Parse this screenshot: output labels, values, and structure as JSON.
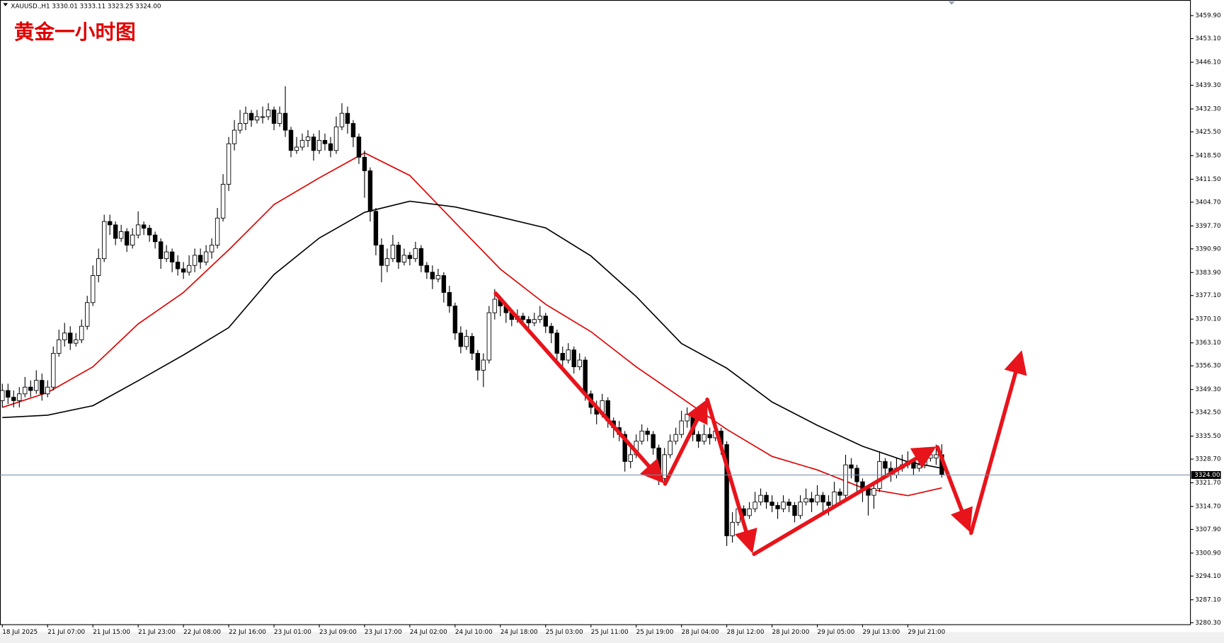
{
  "chart_data": {
    "type": "candlestick",
    "header": "XAUUSD.,H1 3330.01 3333.11 3323.25 3324.00",
    "title": "黄金一小时图",
    "up_color": "#ffffff",
    "down_color": "#000000",
    "categories": [
      "18 Jul 2025",
      null,
      null,
      null,
      null,
      null,
      null,
      null,
      "21 Jul 07:00",
      null,
      null,
      null,
      null,
      null,
      null,
      null,
      "21 Jul 15:00",
      null,
      null,
      null,
      null,
      null,
      null,
      null,
      "21 Jul 23:00",
      null,
      null,
      null,
      null,
      null,
      null,
      null,
      "22 Jul 08:00",
      null,
      null,
      null,
      null,
      null,
      null,
      null,
      "22 Jul 16:00",
      null,
      null,
      null,
      null,
      null,
      null,
      null,
      "23 Jul 01:00",
      null,
      null,
      null,
      null,
      null,
      null,
      null,
      "23 Jul 09:00",
      null,
      null,
      null,
      null,
      null,
      null,
      null,
      "23 Jul 17:00",
      null,
      null,
      null,
      null,
      null,
      null,
      null,
      "24 Jul 02:00",
      null,
      null,
      null,
      null,
      null,
      null,
      null,
      "24 Jul 10:00",
      null,
      null,
      null,
      null,
      null,
      null,
      null,
      "24 Jul 18:00",
      null,
      null,
      null,
      null,
      null,
      null,
      null,
      "25 Jul 03:00",
      null,
      null,
      null,
      null,
      null,
      null,
      null,
      "25 Jul 11:00",
      null,
      null,
      null,
      null,
      null,
      null,
      null,
      "25 Jul 19:00",
      null,
      null,
      null,
      null,
      null,
      null,
      null,
      "28 Jul 04:00",
      null,
      null,
      null,
      null,
      null,
      null,
      null,
      "28 Jul 12:00",
      null,
      null,
      null,
      null,
      null,
      null,
      null,
      "28 Jul 20:00",
      null,
      null,
      null,
      null,
      null,
      null,
      null,
      "29 Jul 05:00",
      null,
      null,
      null,
      null,
      null,
      null,
      null,
      "29 Jul 13:00",
      null,
      null,
      null,
      null,
      null,
      null,
      null,
      "29 Jul 21:00",
      null,
      null,
      null,
      null,
      null,
      null
    ],
    "ohlc": [
      [
        3346,
        3351,
        3344,
        3349
      ],
      [
        3349,
        3351,
        3345,
        3347
      ],
      [
        3347,
        3349,
        3344,
        3346
      ],
      [
        3346,
        3350,
        3344,
        3348
      ],
      [
        3348,
        3353,
        3347,
        3350
      ],
      [
        3350,
        3352,
        3347,
        3349
      ],
      [
        3349,
        3355,
        3348,
        3352
      ],
      [
        3352,
        3354,
        3346,
        3348
      ],
      [
        3348,
        3352,
        3347,
        3350
      ],
      [
        3350,
        3362,
        3349,
        3360
      ],
      [
        3360,
        3367,
        3359,
        3364
      ],
      [
        3364,
        3369,
        3362,
        3366
      ],
      [
        3366,
        3368,
        3361,
        3363
      ],
      [
        3363,
        3366,
        3362,
        3364
      ],
      [
        3364,
        3370,
        3363,
        3368
      ],
      [
        3368,
        3377,
        3367,
        3375
      ],
      [
        3375,
        3386,
        3374,
        3383
      ],
      [
        3383,
        3391,
        3381,
        3388
      ],
      [
        3388,
        3401,
        3387,
        3399
      ],
      [
        3399,
        3401,
        3395,
        3398
      ],
      [
        3398,
        3399,
        3392,
        3394
      ],
      [
        3394,
        3398,
        3393,
        3396
      ],
      [
        3396,
        3397,
        3390,
        3392
      ],
      [
        3392,
        3397,
        3391,
        3395
      ],
      [
        3395,
        3402,
        3394,
        3398
      ],
      [
        3398,
        3399,
        3395,
        3397
      ],
      [
        3397,
        3398,
        3393,
        3395
      ],
      [
        3395,
        3396,
        3391,
        3393
      ],
      [
        3393,
        3394,
        3385,
        3388
      ],
      [
        3388,
        3392,
        3387,
        3390
      ],
      [
        3390,
        3391,
        3384,
        3387
      ],
      [
        3387,
        3389,
        3383,
        3385
      ],
      [
        3385,
        3387,
        3382,
        3384
      ],
      [
        3384,
        3389,
        3383,
        3386
      ],
      [
        3386,
        3391,
        3384,
        3389
      ],
      [
        3389,
        3391,
        3385,
        3387
      ],
      [
        3387,
        3392,
        3386,
        3390
      ],
      [
        3390,
        3394,
        3388,
        3392
      ],
      [
        3392,
        3403,
        3391,
        3400
      ],
      [
        3400,
        3413,
        3399,
        3410
      ],
      [
        3410,
        3424,
        3408,
        3422
      ],
      [
        3422,
        3429,
        3420,
        3426
      ],
      [
        3426,
        3432,
        3425,
        3428
      ],
      [
        3428,
        3433,
        3426,
        3431
      ],
      [
        3431,
        3432,
        3427,
        3429
      ],
      [
        3429,
        3432,
        3428,
        3430
      ],
      [
        3430,
        3433,
        3428,
        3430
      ],
      [
        3430,
        3434,
        3429,
        3432
      ],
      [
        3432,
        3433,
        3426,
        3428
      ],
      [
        3428,
        3433,
        3427,
        3431
      ],
      [
        3431,
        3439,
        3424,
        3426
      ],
      [
        3426,
        3427,
        3418,
        3420
      ],
      [
        3420,
        3424,
        3419,
        3421
      ],
      [
        3421,
        3425,
        3420,
        3423
      ],
      [
        3423,
        3426,
        3421,
        3424
      ],
      [
        3424,
        3425,
        3417,
        3420
      ],
      [
        3420,
        3426,
        3419,
        3423
      ],
      [
        3423,
        3425,
        3420,
        3422
      ],
      [
        3422,
        3424,
        3418,
        3420
      ],
      [
        3420,
        3430,
        3419,
        3427
      ],
      [
        3427,
        3434,
        3426,
        3431
      ],
      [
        3431,
        3433,
        3425,
        3428
      ],
      [
        3428,
        3429,
        3421,
        3424
      ],
      [
        3424,
        3425,
        3416,
        3418
      ],
      [
        3418,
        3420,
        3406,
        3414
      ],
      [
        3414,
        3415,
        3399,
        3402
      ],
      [
        3402,
        3403,
        3389,
        3392
      ],
      [
        3392,
        3394,
        3381,
        3386
      ],
      [
        3386,
        3391,
        3384,
        3388
      ],
      [
        3388,
        3395,
        3387,
        3392
      ],
      [
        3392,
        3393,
        3385,
        3387
      ],
      [
        3387,
        3391,
        3386,
        3389
      ],
      [
        3389,
        3390,
        3386,
        3388
      ],
      [
        3388,
        3393,
        3387,
        3391
      ],
      [
        3391,
        3392,
        3384,
        3386
      ],
      [
        3386,
        3387,
        3382,
        3384
      ],
      [
        3384,
        3386,
        3379,
        3382
      ],
      [
        3382,
        3385,
        3381,
        3383
      ],
      [
        3383,
        3384,
        3375,
        3378
      ],
      [
        3378,
        3380,
        3372,
        3374
      ],
      [
        3374,
        3375,
        3364,
        3366
      ],
      [
        3366,
        3368,
        3360,
        3362
      ],
      [
        3362,
        3367,
        3361,
        3365
      ],
      [
        3365,
        3366,
        3358,
        3360
      ],
      [
        3360,
        3361,
        3352,
        3355
      ],
      [
        3355,
        3360,
        3350,
        3358
      ],
      [
        3358,
        3374,
        3357,
        3372
      ],
      [
        3372,
        3379,
        3370,
        3376
      ],
      [
        3376,
        3377,
        3371,
        3374
      ],
      [
        3374,
        3375,
        3369,
        3372
      ],
      [
        3372,
        3373,
        3368,
        3370
      ],
      [
        3370,
        3373,
        3369,
        3371
      ],
      [
        3371,
        3372,
        3368,
        3370
      ],
      [
        3370,
        3371,
        3367,
        3369
      ],
      [
        3369,
        3372,
        3368,
        3370
      ],
      [
        3370,
        3374,
        3369,
        3371
      ],
      [
        3371,
        3372,
        3366,
        3368
      ],
      [
        3368,
        3369,
        3363,
        3366
      ],
      [
        3366,
        3367,
        3358,
        3360
      ],
      [
        3360,
        3362,
        3356,
        3358
      ],
      [
        3358,
        3363,
        3357,
        3361
      ],
      [
        3361,
        3362,
        3354,
        3356
      ],
      [
        3356,
        3360,
        3355,
        3358
      ],
      [
        3358,
        3359,
        3346,
        3348
      ],
      [
        3348,
        3349,
        3342,
        3344
      ],
      [
        3344,
        3346,
        3339,
        3342
      ],
      [
        3342,
        3348,
        3341,
        3346
      ],
      [
        3346,
        3347,
        3338,
        3340
      ],
      [
        3340,
        3341,
        3335,
        3338
      ],
      [
        3338,
        3340,
        3334,
        3336
      ],
      [
        3336,
        3337,
        3325,
        3328
      ],
      [
        3328,
        3332,
        3326,
        3330
      ],
      [
        3330,
        3336,
        3329,
        3334
      ],
      [
        3334,
        3339,
        3333,
        3337
      ],
      [
        3337,
        3338,
        3334,
        3336
      ],
      [
        3336,
        3337,
        3330,
        3332
      ],
      [
        3332,
        3333,
        3321,
        3323
      ],
      [
        3323,
        3332,
        3322,
        3330
      ],
      [
        3330,
        3336,
        3329,
        3334
      ],
      [
        3334,
        3338,
        3333,
        3336
      ],
      [
        3336,
        3343,
        3335,
        3340
      ],
      [
        3340,
        3344,
        3338,
        3342
      ],
      [
        3342,
        3343,
        3334,
        3336
      ],
      [
        3336,
        3337,
        3332,
        3334
      ],
      [
        3334,
        3339,
        3333,
        3336
      ],
      [
        3336,
        3338,
        3333,
        3335
      ],
      [
        3335,
        3339,
        3334,
        3337
      ],
      [
        3337,
        3338,
        3330,
        3333
      ],
      [
        3333,
        3334,
        3303,
        3306
      ],
      [
        3306,
        3313,
        3304,
        3310
      ],
      [
        3310,
        3316,
        3309,
        3314
      ],
      [
        3314,
        3315,
        3310,
        3312
      ],
      [
        3312,
        3316,
        3311,
        3314
      ],
      [
        3314,
        3319,
        3313,
        3316
      ],
      [
        3316,
        3320,
        3315,
        3318
      ],
      [
        3318,
        3319,
        3314,
        3316
      ],
      [
        3316,
        3318,
        3313,
        3315
      ],
      [
        3315,
        3316,
        3311,
        3314
      ],
      [
        3314,
        3318,
        3313,
        3316
      ],
      [
        3316,
        3317,
        3313,
        3315
      ],
      [
        3315,
        3316,
        3310,
        3312
      ],
      [
        3312,
        3318,
        3311,
        3316
      ],
      [
        3316,
        3320,
        3315,
        3317
      ],
      [
        3317,
        3319,
        3313,
        3316
      ],
      [
        3316,
        3321,
        3315,
        3318
      ],
      [
        3318,
        3319,
        3313,
        3316
      ],
      [
        3316,
        3318,
        3312,
        3315
      ],
      [
        3315,
        3322,
        3314,
        3319
      ],
      [
        3319,
        3320,
        3316,
        3318
      ],
      [
        3318,
        3330,
        3317,
        3327
      ],
      [
        3327,
        3329,
        3323,
        3326
      ],
      [
        3326,
        3327,
        3318,
        3322
      ],
      [
        3322,
        3323,
        3316,
        3320
      ],
      [
        3320,
        3321,
        3312,
        3318
      ],
      [
        3318,
        3322,
        3314,
        3320
      ],
      [
        3320,
        3331,
        3319,
        3328
      ],
      [
        3328,
        3329,
        3323,
        3326
      ],
      [
        3326,
        3328,
        3322,
        3324
      ],
      [
        3324,
        3329,
        3323,
        3326
      ],
      [
        3326,
        3330,
        3325,
        3327
      ],
      [
        3327,
        3331,
        3326,
        3328
      ],
      [
        3328,
        3329,
        3324,
        3326
      ],
      [
        3326,
        3329,
        3325,
        3327
      ],
      [
        3327,
        3331,
        3326,
        3329
      ],
      [
        3329,
        3332,
        3328,
        3330
      ],
      [
        3329,
        3333,
        3327,
        3330
      ],
      [
        3330.01,
        3333.11,
        3323.25,
        3324
      ]
    ],
    "lines": [
      {
        "color": "#e00000",
        "x": [
          0,
          8,
          16,
          24,
          32,
          40,
          48,
          56,
          64,
          72,
          80,
          88,
          96,
          104,
          112,
          120,
          128,
          136,
          144,
          152,
          160,
          166
        ],
        "values": [
          3344.0,
          3348.4,
          3356.0,
          3368.7,
          3378.0,
          3390.6,
          3404.0,
          3411.9,
          3419.3,
          3412.6,
          3398.7,
          3384.9,
          3374.5,
          3366.4,
          3356.0,
          3346.8,
          3337.5,
          3329.5,
          3325.5,
          3320.2,
          3317.9,
          3320.2
        ]
      },
      {
        "color": "#000000",
        "x": [
          0,
          8,
          16,
          24,
          32,
          40,
          48,
          56,
          64,
          72,
          80,
          88,
          96,
          104,
          112,
          120,
          128,
          136,
          144,
          152,
          160,
          166
        ],
        "values": [
          3341.0,
          3341.7,
          3344.5,
          3351.9,
          3359.5,
          3367.6,
          3383.3,
          3394.1,
          3401.7,
          3405.0,
          3403.3,
          3400.3,
          3397.1,
          3388.8,
          3376.8,
          3362.9,
          3355.6,
          3345.6,
          3338.7,
          3332.5,
          3327.9,
          3326.0
        ]
      }
    ],
    "last_price": {
      "value": 3324,
      "label": "3324.00"
    },
    "ylim": [
      3279.84,
      3464.52
    ],
    "yticks": [
      {
        "value": 3459.9,
        "label": "3459.90"
      },
      {
        "value": 3453.1,
        "label": "3453.10"
      },
      {
        "value": 3446.1,
        "label": "3446.10"
      },
      {
        "value": 3439.3,
        "label": "3439.30"
      },
      {
        "value": 3432.3,
        "label": "3432.30"
      },
      {
        "value": 3425.5,
        "label": "3425.50"
      },
      {
        "value": 3418.5,
        "label": "3418.50"
      },
      {
        "value": 3411.5,
        "label": "3411.50"
      },
      {
        "value": 3404.7,
        "label": "3404.70"
      },
      {
        "value": 3397.7,
        "label": "3397.70"
      },
      {
        "value": 3390.9,
        "label": "3390.90"
      },
      {
        "value": 3383.9,
        "label": "3383.90"
      },
      {
        "value": 3377.1,
        "label": "3377.10"
      },
      {
        "value": 3370.1,
        "label": "3370.10"
      },
      {
        "value": 3363.1,
        "label": "3363.10"
      },
      {
        "value": 3356.3,
        "label": "3356.30"
      },
      {
        "value": 3349.3,
        "label": "3349.30"
      },
      {
        "value": 3342.5,
        "label": "3342.50"
      },
      {
        "value": 3335.5,
        "label": "3335.50"
      },
      {
        "value": 3328.7,
        "label": "3328.70"
      },
      {
        "value": 3321.7,
        "label": "3321.70"
      },
      {
        "value": 3314.7,
        "label": "3314.70"
      },
      {
        "value": 3307.9,
        "label": "3307.90"
      },
      {
        "value": 3300.9,
        "label": "3300.90"
      },
      {
        "value": 3294.1,
        "label": "3294.10"
      },
      {
        "value": 3287.1,
        "label": "3287.10"
      },
      {
        "value": 3280.3,
        "label": "3280.30"
      }
    ]
  }
}
